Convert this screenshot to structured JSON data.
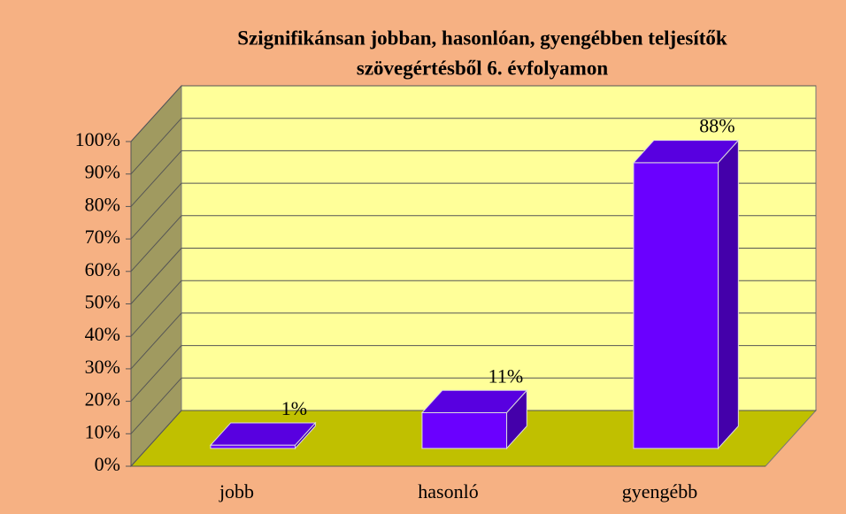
{
  "chart_data": {
    "type": "bar3d",
    "title": "Szignifikánsan  jobban, hasonlóan, gyengébben teljesítők",
    "subtitle": "szövegértésből 6. évfolyamon",
    "categories": [
      "jobb",
      "hasonló",
      "gyengébb"
    ],
    "values": [
      1,
      11,
      88
    ],
    "value_labels": [
      "1%",
      "11%",
      "88%"
    ],
    "color": "#6a00ff",
    "ylim": [
      0,
      100
    ],
    "yticks": [
      {
        "value": 0,
        "label": "0%"
      },
      {
        "value": 10,
        "label": "10%"
      },
      {
        "value": 20,
        "label": "20%"
      },
      {
        "value": 30,
        "label": "30%"
      },
      {
        "value": 40,
        "label": "40%"
      },
      {
        "value": 50,
        "label": "50%"
      },
      {
        "value": 60,
        "label": "60%"
      },
      {
        "value": 70,
        "label": "70%"
      },
      {
        "value": 80,
        "label": "80%"
      },
      {
        "value": 90,
        "label": "90%"
      },
      {
        "value": 100,
        "label": "100%"
      }
    ],
    "grid": true
  }
}
